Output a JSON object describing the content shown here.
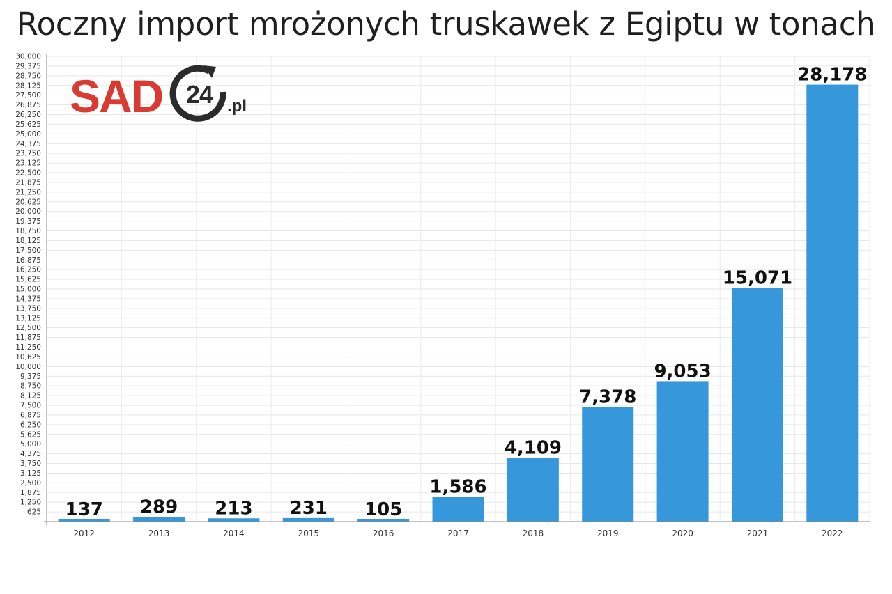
{
  "title": "Roczny import mrożonych truskawek z Egiptu w tonach",
  "logo": {
    "brand": "SAD",
    "number": "24",
    "suffix": ".pl"
  },
  "colors": {
    "bar": "#3797db",
    "brand_red": "#d93a31",
    "brand_dark": "#2b2b2b"
  },
  "chart_data": {
    "type": "bar",
    "title": "Roczny import mrożonych truskawek z Egiptu w tonach",
    "xlabel": "",
    "ylabel": "",
    "categories": [
      "2012",
      "2013",
      "2014",
      "2015",
      "2016",
      "2017",
      "2018",
      "2019",
      "2020",
      "2021",
      "2022"
    ],
    "values": [
      137,
      289,
      213,
      231,
      105,
      1586,
      4109,
      7378,
      9053,
      15071,
      28178
    ],
    "data_labels": [
      "137",
      "289",
      "213",
      "231",
      "105",
      "1,586",
      "4,109",
      "7,378",
      "9,053",
      "15,071",
      "28,178"
    ],
    "ylim": [
      0,
      30000
    ],
    "ytick_step": 625,
    "grid": true,
    "legend": "none"
  }
}
